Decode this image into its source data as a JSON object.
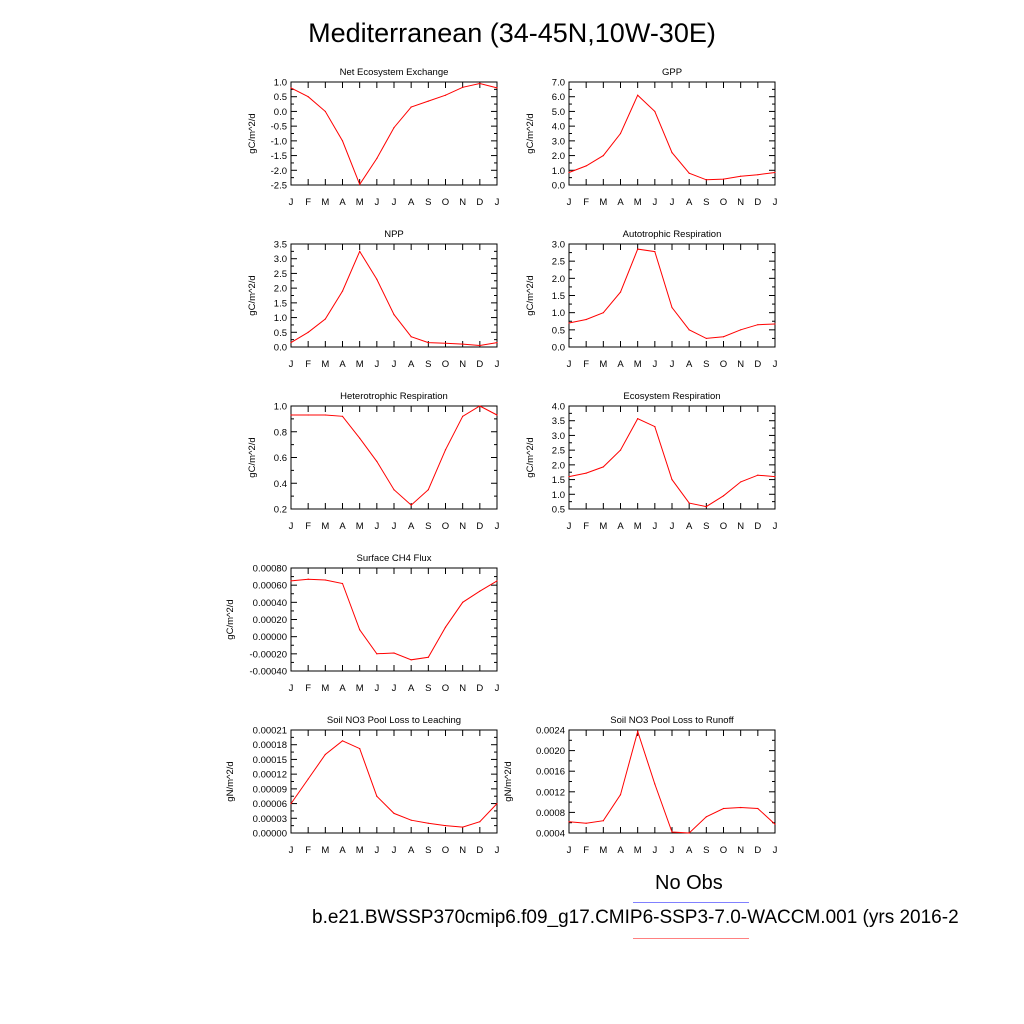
{
  "title": "Mediterranean (34-45N,10W-30E)",
  "legend": {
    "obs_label": "No Obs",
    "case_label": "b.e21.BWSSP370cmip6.f09_g17.CMIP6-SSP3-7.0-WACCM.001 (yrs 2016-2",
    "obs_color": "#8080ff",
    "case_color": "#ff8080"
  },
  "line_color": "#ff0000",
  "chart_data": [
    {
      "type": "line",
      "title": "Net Ecosystem Exchange",
      "ylabel": "gC/m^2/d",
      "categories": [
        "J",
        "F",
        "M",
        "A",
        "M",
        "J",
        "J",
        "A",
        "S",
        "O",
        "N",
        "D",
        "J"
      ],
      "values": [
        0.8,
        0.5,
        0.0,
        -1.0,
        -2.48,
        -1.6,
        -0.55,
        0.15,
        0.35,
        0.55,
        0.82,
        0.95,
        0.8
      ],
      "ylim": [
        -2.5,
        1.0
      ],
      "yticks": [
        "1.0",
        "0.5",
        "0.0",
        "-0.5",
        "-1.0",
        "-1.5",
        "-2.0",
        "-2.5"
      ]
    },
    {
      "type": "line",
      "title": "GPP",
      "ylabel": "gC/m^2/d",
      "categories": [
        "J",
        "F",
        "M",
        "A",
        "M",
        "J",
        "J",
        "A",
        "S",
        "O",
        "N",
        "D",
        "J"
      ],
      "values": [
        0.85,
        1.3,
        2.0,
        3.5,
        6.1,
        5.0,
        2.2,
        0.8,
        0.35,
        0.4,
        0.6,
        0.7,
        0.85
      ],
      "ylim": [
        0.0,
        7.0
      ],
      "yticks": [
        "7.0",
        "6.0",
        "5.0",
        "4.0",
        "3.0",
        "2.0",
        "1.0",
        "0.0"
      ]
    },
    {
      "type": "line",
      "title": "NPP",
      "ylabel": "gC/m^2/d",
      "categories": [
        "J",
        "F",
        "M",
        "A",
        "M",
        "J",
        "J",
        "A",
        "S",
        "O",
        "N",
        "D",
        "J"
      ],
      "values": [
        0.15,
        0.5,
        0.95,
        1.9,
        3.25,
        2.3,
        1.1,
        0.35,
        0.15,
        0.13,
        0.1,
        0.05,
        0.15
      ],
      "ylim": [
        0.0,
        3.5
      ],
      "yticks": [
        "3.5",
        "3.0",
        "2.5",
        "2.0",
        "1.5",
        "1.0",
        "0.5",
        "0.0"
      ]
    },
    {
      "type": "line",
      "title": "Autotrophic Respiration",
      "ylabel": "gC/m^2/d",
      "categories": [
        "J",
        "F",
        "M",
        "A",
        "M",
        "J",
        "J",
        "A",
        "S",
        "O",
        "N",
        "D",
        "J"
      ],
      "values": [
        0.7,
        0.8,
        1.0,
        1.6,
        2.85,
        2.78,
        1.15,
        0.5,
        0.25,
        0.3,
        0.5,
        0.65,
        0.67
      ],
      "ylim": [
        0.0,
        3.0
      ],
      "yticks": [
        "3.0",
        "2.5",
        "2.0",
        "1.5",
        "1.0",
        "0.5",
        "0.0"
      ]
    },
    {
      "type": "line",
      "title": "Heterotrophic Respiration",
      "ylabel": "gC/m^2/d",
      "categories": [
        "J",
        "F",
        "M",
        "A",
        "M",
        "J",
        "J",
        "A",
        "S",
        "O",
        "N",
        "D",
        "J"
      ],
      "values": [
        0.93,
        0.93,
        0.93,
        0.92,
        0.75,
        0.57,
        0.35,
        0.23,
        0.35,
        0.66,
        0.92,
        1.0,
        0.93
      ],
      "ylim": [
        0.2,
        1.0
      ],
      "yticks": [
        "1.0",
        "0.8",
        "0.6",
        "0.4",
        "0.2"
      ]
    },
    {
      "type": "line",
      "title": "Ecosystem Respiration",
      "ylabel": "gC/m^2/d",
      "categories": [
        "J",
        "F",
        "M",
        "A",
        "M",
        "J",
        "J",
        "A",
        "S",
        "O",
        "N",
        "D",
        "J"
      ],
      "values": [
        1.6,
        1.72,
        1.93,
        2.5,
        3.57,
        3.3,
        1.5,
        0.7,
        0.58,
        0.95,
        1.42,
        1.65,
        1.6
      ],
      "ylim": [
        0.5,
        4.0
      ],
      "yticks": [
        "4.0",
        "3.5",
        "3.0",
        "2.5",
        "2.0",
        "1.5",
        "1.0",
        "0.5"
      ]
    },
    {
      "type": "line",
      "title": "Surface CH4 Flux",
      "ylabel": "gC/m^2/d",
      "categories": [
        "J",
        "F",
        "M",
        "A",
        "M",
        "J",
        "J",
        "A",
        "S",
        "O",
        "N",
        "D",
        "J"
      ],
      "values": [
        0.00065,
        0.00067,
        0.00066,
        0.00062,
        8e-05,
        -0.0002,
        -0.00019,
        -0.00027,
        -0.00024,
        0.00011,
        0.0004,
        0.00053,
        0.00065
      ],
      "ylim": [
        -0.0004,
        0.0008
      ],
      "yticks": [
        "0.00080",
        "0.00060",
        "0.00040",
        "0.00020",
        "0.00000",
        "-0.00020",
        "-0.00040"
      ]
    },
    {
      "type": "line",
      "title": "Soil NO3 Pool Loss to Leaching",
      "ylabel": "gN/m^2/d",
      "categories": [
        "J",
        "F",
        "M",
        "A",
        "M",
        "J",
        "J",
        "A",
        "S",
        "O",
        "N",
        "D",
        "J"
      ],
      "values": [
        6e-05,
        0.00011,
        0.00016,
        0.000188,
        0.000172,
        7.5e-05,
        4e-05,
        2.6e-05,
        2e-05,
        1.5e-05,
        1.2e-05,
        2.3e-05,
        6e-05
      ],
      "ylim": [
        0.0,
        0.00021
      ],
      "yticks": [
        "0.00021",
        "0.00018",
        "0.00015",
        "0.00012",
        "0.00009",
        "0.00006",
        "0.00003",
        "0.00000"
      ]
    },
    {
      "type": "line",
      "title": "Soil NO3 Pool Loss to Runoff",
      "ylabel": "gN/m^2/d",
      "categories": [
        "J",
        "F",
        "M",
        "A",
        "M",
        "J",
        "J",
        "A",
        "S",
        "O",
        "N",
        "D",
        "J"
      ],
      "values": [
        0.00053,
        0.0005,
        0.00055,
        0.00108,
        0.00237,
        0.0013,
        0.00032,
        0.0003,
        0.00063,
        0.0008,
        0.00082,
        0.0008,
        0.00048
      ],
      "ylim": [
        0.0003,
        0.0024
      ],
      "yticks": [
        "0.0024",
        "0.0020",
        "0.0016",
        "0.0012",
        "0.0008",
        "0.0004"
      ]
    }
  ]
}
